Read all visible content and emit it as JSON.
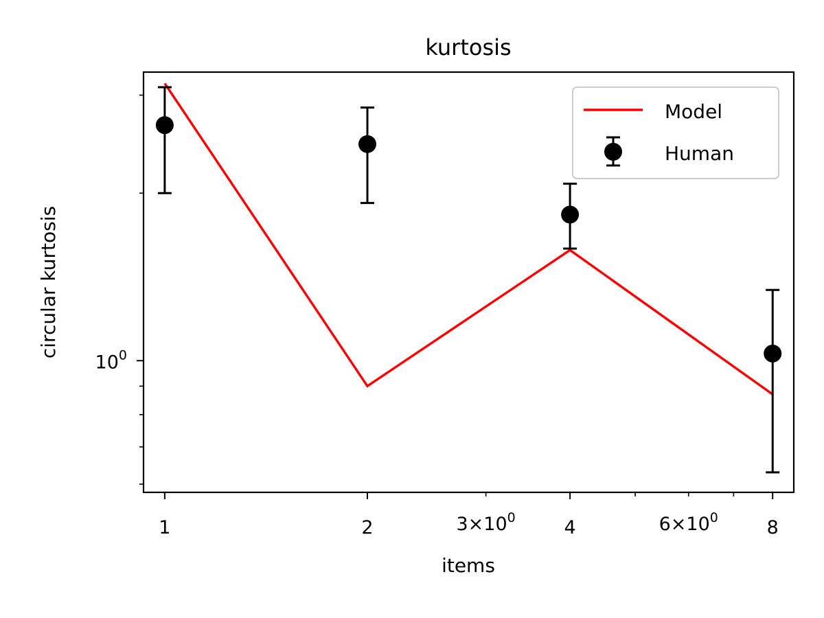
{
  "chart_data": {
    "type": "line",
    "title": "kurtosis",
    "xlabel": "items",
    "ylabel": "circular kurtosis",
    "x_scale": "log",
    "y_scale": "log",
    "xlim": [
      0.93,
      8.6
    ],
    "ylim": [
      0.58,
      3.3
    ],
    "x_ticks": [
      {
        "value": 1,
        "label": "1"
      },
      {
        "value": 2,
        "label": "2"
      },
      {
        "value": 4,
        "label": "4"
      },
      {
        "value": 8,
        "label": "8"
      }
    ],
    "x_minor_ticks": [
      {
        "value": 3,
        "base": "3",
        "sep": "×",
        "mant": "10",
        "exp": "0"
      },
      {
        "value": 5,
        "base": "",
        "sep": "",
        "mant": "",
        "exp": ""
      },
      {
        "value": 6,
        "base": "6",
        "sep": "×",
        "mant": "10",
        "exp": "0"
      },
      {
        "value": 7,
        "base": "",
        "sep": "",
        "mant": "",
        "exp": ""
      }
    ],
    "y_ticks": [
      {
        "value": 1,
        "mant": "10",
        "exp": "0"
      }
    ],
    "y_minor_ticks": [
      0.6,
      0.7,
      0.8,
      0.9,
      2,
      3
    ],
    "grid": false,
    "legend_position": "top-right",
    "series": [
      {
        "name": "Model",
        "kind": "line",
        "color": "#ff0000",
        "x": [
          1,
          2,
          4,
          8
        ],
        "y": [
          3.15,
          0.9,
          1.58,
          0.87
        ]
      },
      {
        "name": "Human",
        "kind": "errorbar",
        "color": "#000000",
        "x": [
          1,
          2,
          4,
          8
        ],
        "y": [
          2.65,
          2.45,
          1.83,
          1.03
        ],
        "yerr_low": [
          2.0,
          1.92,
          1.59,
          0.63
        ],
        "yerr_high": [
          3.1,
          2.85,
          2.08,
          1.34
        ]
      }
    ]
  }
}
